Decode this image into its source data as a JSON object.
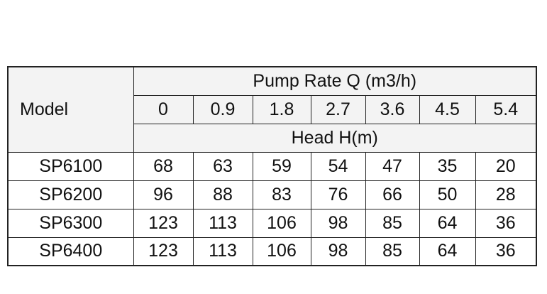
{
  "header": {
    "model": "Model",
    "pump_rate_label": "Pump Rate Q (m3/h)",
    "rates": [
      0,
      0.9,
      1.8,
      2.7,
      3.6,
      4.5,
      5.4
    ],
    "head_label": "Head H(m)"
  },
  "table": {
    "rows": [
      [
        "SP6100",
        68,
        63,
        59,
        54,
        47,
        35,
        20
      ],
      [
        "SP6200",
        96,
        88,
        83,
        76,
        66,
        50,
        28
      ],
      [
        "SP6300",
        123,
        113,
        106,
        98,
        85,
        64,
        36
      ],
      [
        "SP6400",
        123,
        113,
        106,
        98,
        85,
        64,
        36
      ]
    ]
  }
}
